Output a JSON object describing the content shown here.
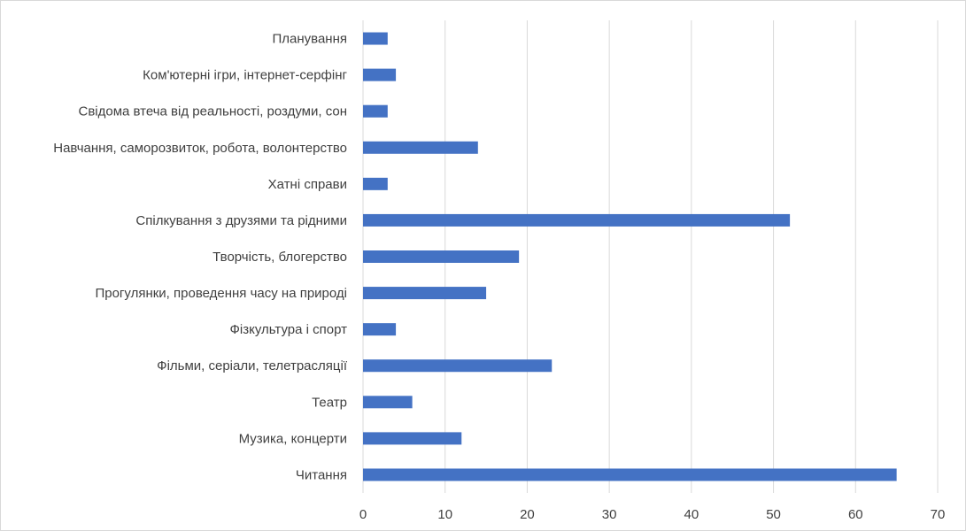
{
  "chart_data": {
    "type": "bar",
    "orientation": "horizontal",
    "title": "",
    "xlabel": "",
    "ylabel": "",
    "categories": [
      "Читання",
      "Музика, концерти",
      "Театр",
      "Фільми, серіали, телетрасляції",
      "Фізкультура і спорт",
      "Прогулянки, проведення часу на природі",
      "Творчість, блогерство",
      "Спілкування з друзями та рідними",
      "Хатні справи",
      "Навчання, саморозвиток, робота, волонтерство",
      "Свідома втеча від реальності, роздуми, сон",
      "Ком'ютерні ігри, інтернет-серфінг",
      "Планування"
    ],
    "values": [
      65,
      12,
      6,
      23,
      4,
      15,
      19,
      52,
      3,
      14,
      3,
      4,
      3
    ],
    "xlim": [
      0,
      70
    ],
    "xticks": [
      0,
      10,
      20,
      30,
      40,
      50,
      60,
      70
    ],
    "grid": true,
    "legend": "none",
    "bar_color": "#4472c4"
  }
}
